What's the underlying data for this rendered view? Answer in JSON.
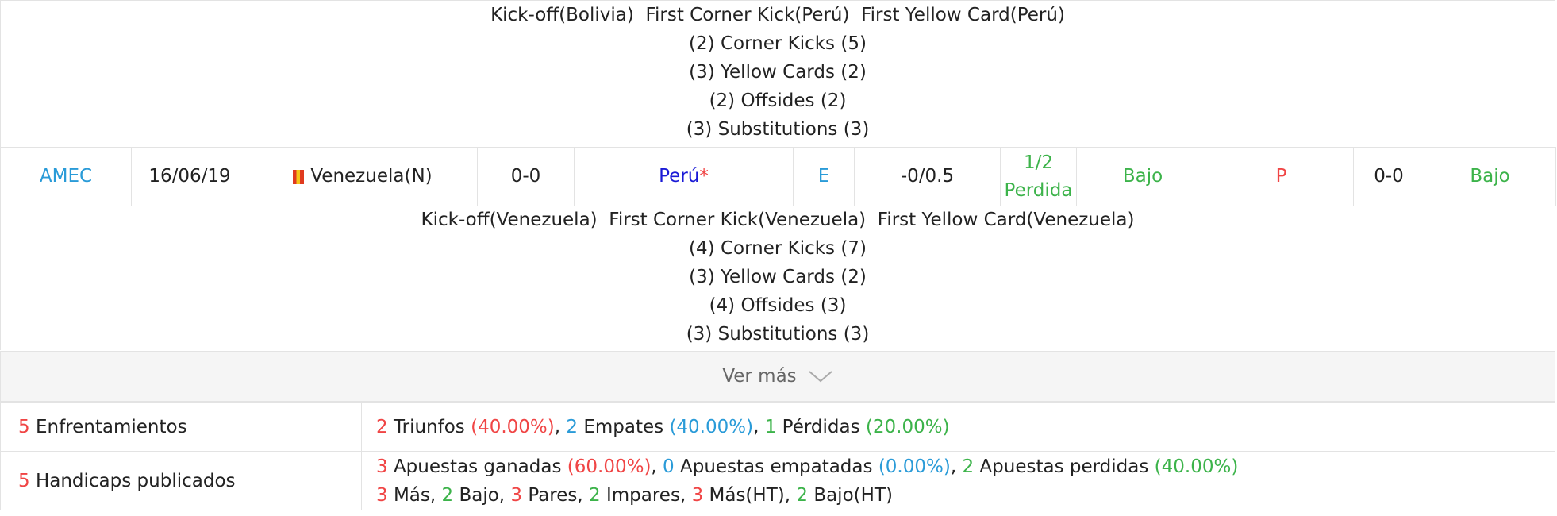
{
  "match1_details": {
    "line1": [
      "Kick-off(Bolivia)",
      "First Corner Kick(Perú)",
      "First Yellow Card(Perú)"
    ],
    "corners": "(2) Corner Kicks (5)",
    "yellow": "(3) Yellow Cards (2)",
    "offsides": "(2) Offsides (2)",
    "subs": "(3) Substitutions (3)"
  },
  "match2": {
    "league": "AMEC",
    "date": "16/06/19",
    "home": "Venezuela(N)",
    "score": "0-0",
    "away": "Perú",
    "away_mark": "*",
    "result": "E",
    "handicap": "-0/0.5",
    "hc_result_1": "1/2",
    "hc_result_2": "Perdida",
    "ou": "Bajo",
    "ht_result": "P",
    "ht_score": "0-0",
    "ht_ou": "Bajo",
    "flag_colors": [
      "#e03a1e",
      "#f5c518"
    ]
  },
  "match2_details": {
    "line1": [
      "Kick-off(Venezuela)",
      "First Corner Kick(Venezuela)",
      "First Yellow Card(Venezuela)"
    ],
    "corners": "(4) Corner Kicks (7)",
    "yellow": "(3) Yellow Cards (2)",
    "offsides": "(4) Offsides (3)",
    "subs": "(3) Substitutions (3)"
  },
  "more": {
    "label": "Ver más",
    "icon": "chevron-down-icon"
  },
  "summary": {
    "matchups": {
      "count": "5",
      "label": "Enfrentamientos",
      "wins": "2",
      "wins_label": "Triunfos",
      "wins_pct": "(40.00%)",
      "draws": "2",
      "draws_label": "Empates",
      "draws_pct": "(40.00%)",
      "losses": "1",
      "losses_label": "Pérdidas",
      "losses_pct": "(20.00%)"
    },
    "handicaps": {
      "count": "5",
      "label": "Handicaps publicados",
      "won": "3",
      "won_label": "Apuestas ganadas",
      "won_pct": "(60.00%)",
      "tied": "0",
      "tied_label": "Apuestas empatadas",
      "tied_pct": "(0.00%)",
      "lost": "2",
      "lost_label": "Apuestas perdidas",
      "lost_pct": "(40.00%)",
      "over": "3",
      "over_label": "Más",
      "under": "2",
      "under_label": "Bajo",
      "even": "3",
      "even_label": "Pares",
      "odd": "2",
      "odd_label": "Impares",
      "over_ht": "3",
      "over_ht_label": "Más(HT)",
      "under_ht": "2",
      "under_ht_label": "Bajo(HT)"
    }
  }
}
